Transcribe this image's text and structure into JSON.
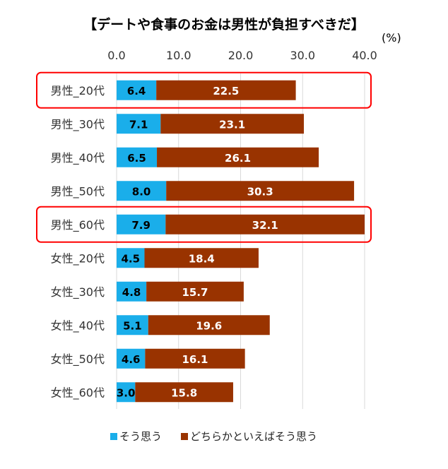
{
  "chart_data": {
    "type": "bar",
    "orientation": "horizontal",
    "stacked": true,
    "title": "【デートや食事のお金は男性が負担すべきだ】",
    "unit_label": "(%)",
    "categories": [
      "男性_20代",
      "男性_30代",
      "男性_40代",
      "男性_50代",
      "男性_60代",
      "女性_20代",
      "女性_30代",
      "女性_40代",
      "女性_50代",
      "女性_60代"
    ],
    "series": [
      {
        "name": "そう思う",
        "color": "#1AAEEA",
        "values": [
          6.4,
          7.1,
          6.5,
          8.0,
          7.9,
          4.5,
          4.8,
          5.1,
          4.6,
          3.0
        ]
      },
      {
        "name": "どちらかといえばそう思う",
        "color": "#993300",
        "values": [
          22.5,
          23.1,
          26.1,
          30.3,
          32.1,
          18.4,
          15.7,
          19.6,
          16.1,
          15.8
        ]
      }
    ],
    "xlim": [
      0,
      40
    ],
    "xticks": [
      "0.0",
      "10.0",
      "20.0",
      "30.0",
      "40.0"
    ],
    "grid": true,
    "legend": "bottom",
    "highlighted_categories": [
      "男性_20代",
      "男性_60代"
    ],
    "highlight_color": "#FF0000"
  }
}
